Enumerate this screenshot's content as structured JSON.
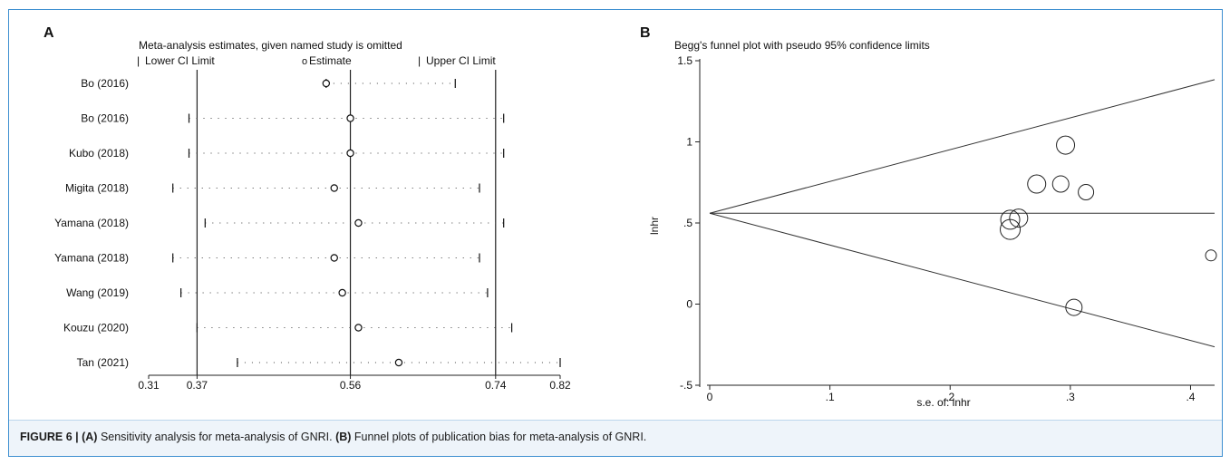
{
  "figure": {
    "label": "FIGURE 6 |",
    "caption_a_label": "(A)",
    "caption_a_text": " Sensitivity analysis for meta-analysis of GNRI. ",
    "caption_b_label": "(B)",
    "caption_b_text": " Funnel plots of publication bias for meta-analysis of GNRI."
  },
  "chart_data": [
    {
      "type": "forest",
      "panel_label": "A",
      "title": "Meta-analysis estimates, given named study is omitted",
      "legend": [
        "Lower CI Limit",
        "Estimate",
        "Upper CI Limit"
      ],
      "legend_markers": [
        "|",
        "o",
        "|"
      ],
      "xlim": [
        0.31,
        0.82
      ],
      "x_ticks": [
        0.31,
        0.37,
        0.56,
        0.74,
        0.82
      ],
      "x_tick_labels": [
        "0.31",
        "0.37",
        "0.56",
        "0.74",
        "0.82"
      ],
      "reference_lines": [
        0.37,
        0.56,
        0.74
      ],
      "studies": [
        {
          "name": "Bo (2016)",
          "lower": 0.53,
          "estimate": 0.53,
          "upper": 0.69
        },
        {
          "name": "Bo (2016)",
          "lower": 0.36,
          "estimate": 0.56,
          "upper": 0.75
        },
        {
          "name": "Kubo (2018)",
          "lower": 0.36,
          "estimate": 0.56,
          "upper": 0.75
        },
        {
          "name": "Migita (2018)",
          "lower": 0.34,
          "estimate": 0.54,
          "upper": 0.72
        },
        {
          "name": "Yamana (2018)",
          "lower": 0.38,
          "estimate": 0.57,
          "upper": 0.75
        },
        {
          "name": "Yamana (2018)",
          "lower": 0.34,
          "estimate": 0.54,
          "upper": 0.72
        },
        {
          "name": "Wang (2019)",
          "lower": 0.35,
          "estimate": 0.55,
          "upper": 0.73
        },
        {
          "name": "Kouzu (2020)",
          "lower": 0.37,
          "estimate": 0.57,
          "upper": 0.76
        },
        {
          "name": "Tan (2021)",
          "lower": 0.42,
          "estimate": 0.62,
          "upper": 0.82
        }
      ]
    },
    {
      "type": "scatter",
      "panel_label": "B",
      "title": "Begg's funnel plot with pseudo 95% confidence limits",
      "xlabel": "s.e. of: lnhr",
      "ylabel": "lnhr",
      "xlim": [
        0,
        0.42
      ],
      "ylim": [
        -0.5,
        1.5
      ],
      "x_ticks": [
        0,
        0.1,
        0.2,
        0.3,
        0.4
      ],
      "x_tick_labels": [
        "0",
        ".1",
        ".2",
        ".3",
        ".4"
      ],
      "y_ticks": [
        -0.5,
        0,
        0.5,
        1,
        1.5
      ],
      "y_tick_labels": [
        "-.5",
        "0",
        ".5",
        "1",
        "1.5"
      ],
      "pooled_estimate": 0.56,
      "ci_multiplier": 1.96,
      "points": [
        {
          "x": 0.296,
          "y": 0.98,
          "weight": 1.0
        },
        {
          "x": 0.272,
          "y": 0.74,
          "weight": 1.0
        },
        {
          "x": 0.292,
          "y": 0.74,
          "weight": 0.9
        },
        {
          "x": 0.313,
          "y": 0.69,
          "weight": 0.85
        },
        {
          "x": 0.25,
          "y": 0.52,
          "weight": 1.05
        },
        {
          "x": 0.257,
          "y": 0.53,
          "weight": 1.0
        },
        {
          "x": 0.25,
          "y": 0.46,
          "weight": 1.1
        },
        {
          "x": 0.417,
          "y": 0.3,
          "weight": 0.6
        },
        {
          "x": 0.303,
          "y": -0.02,
          "weight": 0.9
        }
      ]
    }
  ]
}
